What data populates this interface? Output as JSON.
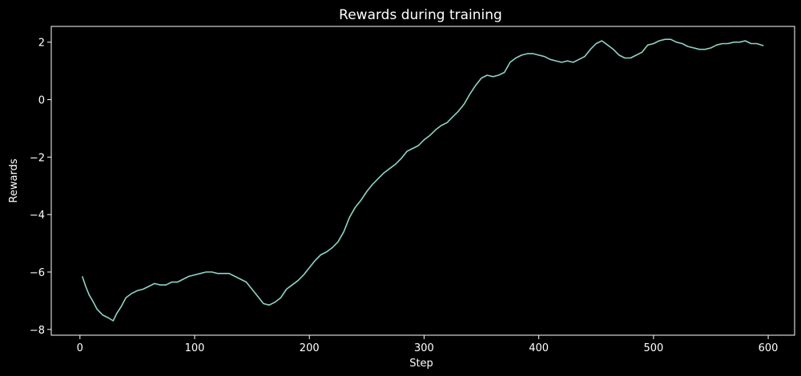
{
  "chart_data": {
    "type": "line",
    "title": "Rewards during training",
    "xlabel": "Step",
    "ylabel": "Rewards",
    "xlim": [
      -25,
      623
    ],
    "ylim": [
      -8.2,
      2.55
    ],
    "xticks": [
      0,
      100,
      200,
      300,
      400,
      500,
      600
    ],
    "yticks": [
      -8,
      -6,
      -4,
      -2,
      0,
      2
    ],
    "xtick_labels": [
      "0",
      "100",
      "200",
      "300",
      "400",
      "500",
      "600"
    ],
    "ytick_labels": [
      "−8",
      "−6",
      "−4",
      "−2",
      "0",
      "2"
    ],
    "grid": false,
    "line_color": "#8dd3c7",
    "background": "#000000",
    "series": [
      {
        "x": [
          2,
          5,
          8,
          11,
          15,
          20,
          25,
          29,
          32,
          36,
          40,
          45,
          50,
          55,
          60,
          65,
          70,
          75,
          80,
          85,
          90,
          95,
          100,
          105,
          110,
          115,
          120,
          125,
          130,
          135,
          140,
          145,
          150,
          155,
          160,
          165,
          170,
          175,
          180,
          185,
          190,
          195,
          200,
          205,
          210,
          215,
          220,
          225,
          230,
          235,
          240,
          245,
          250,
          255,
          260,
          265,
          270,
          275,
          280,
          285,
          290,
          295,
          300,
          305,
          310,
          315,
          320,
          325,
          330,
          335,
          340,
          345,
          350,
          355,
          360,
          365,
          370,
          375,
          380,
          385,
          390,
          395,
          400,
          405,
          410,
          415,
          420,
          425,
          430,
          435,
          440,
          445,
          450,
          455,
          460,
          465,
          470,
          475,
          480,
          485,
          490,
          495,
          500,
          505,
          510,
          515,
          520,
          525,
          530,
          535,
          540,
          545,
          550,
          555,
          560,
          565,
          570,
          575,
          580,
          585,
          590,
          596
        ],
        "y": [
          -6.15,
          -6.5,
          -6.8,
          -7.0,
          -7.3,
          -7.5,
          -7.6,
          -7.7,
          -7.45,
          -7.2,
          -6.9,
          -6.75,
          -6.65,
          -6.6,
          -6.5,
          -6.4,
          -6.45,
          -6.45,
          -6.35,
          -6.35,
          -6.25,
          -6.15,
          -6.1,
          -6.05,
          -6.0,
          -6.0,
          -6.05,
          -6.05,
          -6.05,
          -6.15,
          -6.25,
          -6.35,
          -6.6,
          -6.85,
          -7.1,
          -7.15,
          -7.05,
          -6.9,
          -6.6,
          -6.45,
          -6.3,
          -6.1,
          -5.85,
          -5.6,
          -5.4,
          -5.3,
          -5.15,
          -4.95,
          -4.6,
          -4.1,
          -3.75,
          -3.5,
          -3.2,
          -2.95,
          -2.75,
          -2.55,
          -2.4,
          -2.25,
          -2.05,
          -1.8,
          -1.7,
          -1.6,
          -1.4,
          -1.25,
          -1.05,
          -0.9,
          -0.8,
          -0.6,
          -0.4,
          -0.15,
          0.2,
          0.5,
          0.75,
          0.85,
          0.8,
          0.85,
          0.95,
          1.3,
          1.45,
          1.55,
          1.6,
          1.6,
          1.55,
          1.5,
          1.4,
          1.35,
          1.3,
          1.35,
          1.3,
          1.4,
          1.5,
          1.75,
          1.95,
          2.05,
          1.9,
          1.75,
          1.55,
          1.45,
          1.45,
          1.55,
          1.65,
          1.9,
          1.95,
          2.05,
          2.1,
          2.1,
          2.0,
          1.95,
          1.85,
          1.8,
          1.75,
          1.75,
          1.8,
          1.9,
          1.95,
          1.95,
          2.0,
          2.0,
          2.05,
          1.95,
          1.95,
          1.88
        ]
      }
    ]
  }
}
